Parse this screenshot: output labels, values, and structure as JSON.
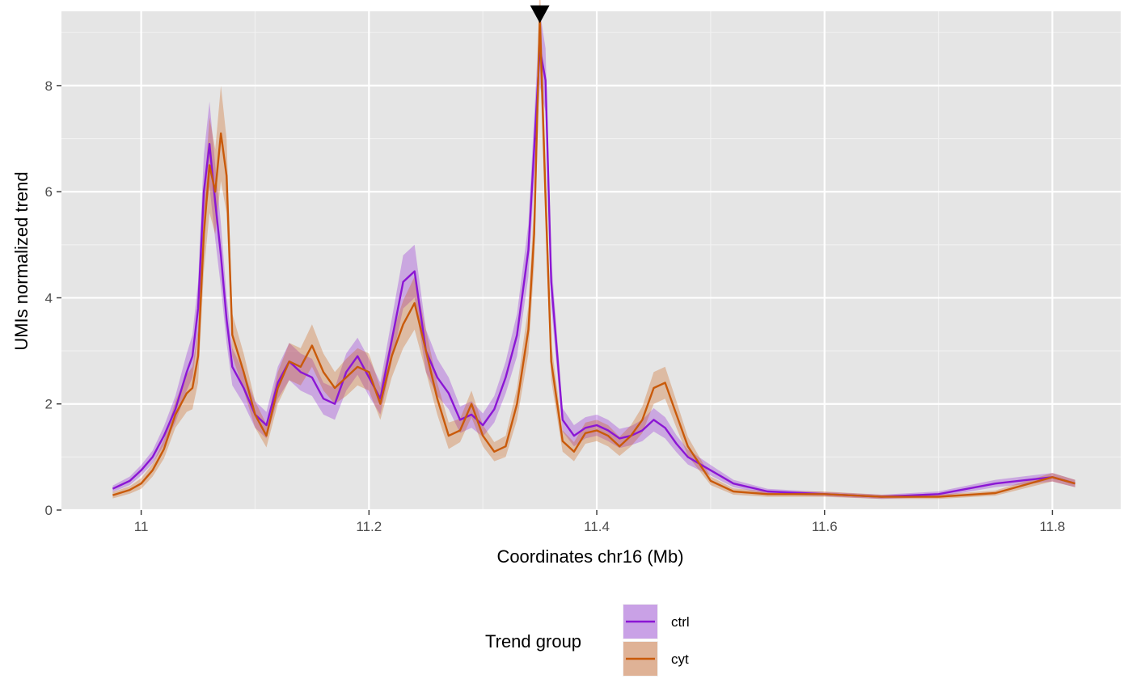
{
  "chart_data": {
    "type": "line",
    "title": "",
    "xlabel": "Coordinates chr16 (Mb)",
    "ylabel": "UMIs normalized trend",
    "xlim": [
      10.93,
      11.86
    ],
    "ylim": [
      0,
      9.4
    ],
    "x_ticks": [
      11.0,
      11.2,
      11.4,
      11.6,
      11.8
    ],
    "x_tick_labels": [
      "11",
      "11.2",
      "11.4",
      "11.6",
      "11.8"
    ],
    "y_ticks": [
      0,
      2,
      4,
      6,
      8
    ],
    "y_tick_labels": [
      "0",
      "2",
      "4",
      "6",
      "8"
    ],
    "grid": true,
    "background": "#e5e5e5",
    "marker": {
      "shape": "downward-triangle",
      "x": 11.35,
      "y": 9.3,
      "color": "#000000"
    },
    "legend": {
      "title": "Trend group",
      "position": "bottom",
      "entries": [
        "ctrl",
        "cyt"
      ]
    },
    "series": [
      {
        "name": "ctrl",
        "color": "#8b16d4",
        "band_color": "#c9a1e6",
        "x": [
          10.975,
          10.99,
          11.0,
          11.01,
          11.02,
          11.03,
          11.04,
          11.045,
          11.05,
          11.055,
          11.06,
          11.065,
          11.07,
          11.075,
          11.08,
          11.09,
          11.1,
          11.11,
          11.12,
          11.13,
          11.14,
          11.15,
          11.16,
          11.17,
          11.18,
          11.19,
          11.2,
          11.21,
          11.22,
          11.23,
          11.24,
          11.25,
          11.26,
          11.27,
          11.28,
          11.29,
          11.3,
          11.31,
          11.32,
          11.33,
          11.34,
          11.345,
          11.35,
          11.355,
          11.36,
          11.37,
          11.38,
          11.39,
          11.4,
          11.41,
          11.42,
          11.43,
          11.44,
          11.45,
          11.46,
          11.47,
          11.48,
          11.5,
          11.52,
          11.55,
          11.6,
          11.65,
          11.7,
          11.75,
          11.8,
          11.82
        ],
        "y": [
          0.4,
          0.55,
          0.75,
          1.0,
          1.4,
          1.9,
          2.6,
          2.9,
          3.8,
          6.0,
          6.9,
          5.8,
          4.8,
          3.6,
          2.7,
          2.3,
          1.8,
          1.6,
          2.4,
          2.8,
          2.6,
          2.5,
          2.1,
          2.0,
          2.6,
          2.9,
          2.5,
          2.1,
          3.2,
          4.3,
          4.5,
          3.0,
          2.5,
          2.2,
          1.7,
          1.8,
          1.6,
          1.9,
          2.5,
          3.3,
          4.9,
          6.8,
          8.7,
          8.1,
          4.3,
          1.7,
          1.4,
          1.55,
          1.6,
          1.5,
          1.35,
          1.4,
          1.5,
          1.7,
          1.55,
          1.25,
          1.0,
          0.75,
          0.5,
          0.35,
          0.3,
          0.25,
          0.3,
          0.5,
          0.62,
          0.5
        ],
        "band_halfwidth": [
          0.06,
          0.08,
          0.1,
          0.12,
          0.18,
          0.25,
          0.35,
          0.4,
          0.5,
          0.7,
          0.8,
          0.7,
          0.6,
          0.45,
          0.35,
          0.3,
          0.25,
          0.25,
          0.3,
          0.35,
          0.35,
          0.35,
          0.3,
          0.3,
          0.35,
          0.35,
          0.35,
          0.3,
          0.4,
          0.5,
          0.5,
          0.4,
          0.35,
          0.3,
          0.25,
          0.25,
          0.22,
          0.25,
          0.3,
          0.4,
          0.5,
          0.6,
          0.7,
          0.6,
          0.45,
          0.22,
          0.2,
          0.2,
          0.2,
          0.2,
          0.18,
          0.18,
          0.2,
          0.22,
          0.2,
          0.16,
          0.14,
          0.1,
          0.07,
          0.05,
          0.04,
          0.04,
          0.05,
          0.07,
          0.08,
          0.07
        ]
      },
      {
        "name": "cyt",
        "color": "#c95a0a",
        "band_color": "#dfb296",
        "x": [
          10.975,
          10.99,
          11.0,
          11.01,
          11.02,
          11.03,
          11.04,
          11.045,
          11.05,
          11.055,
          11.06,
          11.065,
          11.07,
          11.075,
          11.08,
          11.09,
          11.1,
          11.11,
          11.12,
          11.13,
          11.14,
          11.15,
          11.16,
          11.17,
          11.18,
          11.19,
          11.2,
          11.21,
          11.22,
          11.23,
          11.24,
          11.25,
          11.26,
          11.27,
          11.28,
          11.29,
          11.3,
          11.31,
          11.32,
          11.33,
          11.34,
          11.345,
          11.35,
          11.355,
          11.36,
          11.37,
          11.38,
          11.39,
          11.4,
          11.41,
          11.42,
          11.43,
          11.44,
          11.45,
          11.46,
          11.47,
          11.48,
          11.5,
          11.52,
          11.55,
          11.6,
          11.65,
          11.7,
          11.75,
          11.8,
          11.82
        ],
        "y": [
          0.28,
          0.38,
          0.5,
          0.75,
          1.15,
          1.8,
          2.2,
          2.3,
          2.9,
          5.2,
          6.5,
          6.0,
          7.1,
          6.3,
          3.3,
          2.6,
          1.8,
          1.4,
          2.3,
          2.8,
          2.7,
          3.1,
          2.6,
          2.3,
          2.5,
          2.7,
          2.6,
          2.0,
          2.9,
          3.5,
          3.9,
          3.0,
          2.1,
          1.4,
          1.5,
          2.0,
          1.4,
          1.1,
          1.2,
          2.0,
          3.4,
          5.2,
          9.3,
          5.9,
          2.8,
          1.3,
          1.1,
          1.45,
          1.5,
          1.4,
          1.2,
          1.4,
          1.7,
          2.3,
          2.4,
          1.8,
          1.2,
          0.55,
          0.35,
          0.3,
          0.3,
          0.25,
          0.25,
          0.32,
          0.62,
          0.5
        ],
        "band_halfwidth": [
          0.06,
          0.07,
          0.1,
          0.12,
          0.18,
          0.25,
          0.35,
          0.4,
          0.5,
          0.7,
          0.9,
          0.8,
          0.9,
          0.7,
          0.4,
          0.35,
          0.25,
          0.22,
          0.3,
          0.35,
          0.35,
          0.4,
          0.35,
          0.3,
          0.35,
          0.35,
          0.35,
          0.3,
          0.4,
          0.45,
          0.5,
          0.4,
          0.3,
          0.25,
          0.22,
          0.25,
          0.2,
          0.18,
          0.2,
          0.3,
          0.45,
          0.6,
          0.8,
          0.6,
          0.35,
          0.2,
          0.18,
          0.2,
          0.2,
          0.2,
          0.18,
          0.2,
          0.25,
          0.3,
          0.3,
          0.25,
          0.18,
          0.08,
          0.06,
          0.05,
          0.05,
          0.04,
          0.04,
          0.05,
          0.08,
          0.07
        ]
      }
    ]
  }
}
